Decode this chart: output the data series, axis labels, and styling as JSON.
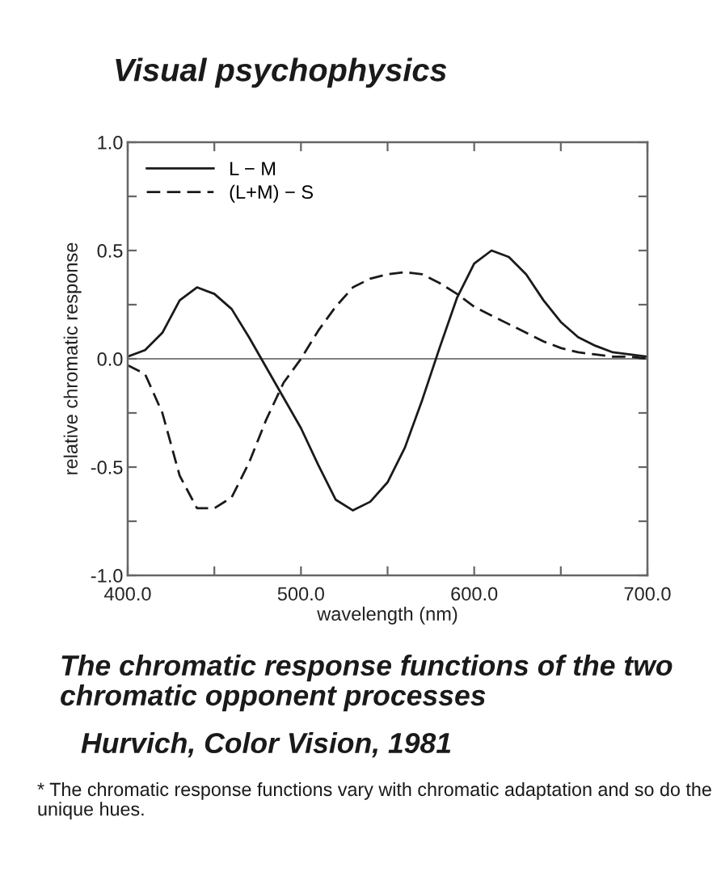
{
  "chart_data": {
    "type": "line",
    "title": "Visual psychophysics",
    "xlabel": "wavelength (nm)",
    "ylabel": "relative chromatic response",
    "annotations": [
      "The chromatic response functions of the two chromatic opponent processes",
      "Hurvich, Color Vision, 1981",
      "* The chromatic response functions vary with chromatic adaptation and so do the unique hues."
    ],
    "x": [
      400,
      410,
      420,
      430,
      440,
      450,
      460,
      470,
      480,
      490,
      500,
      510,
      520,
      530,
      540,
      550,
      560,
      570,
      580,
      590,
      600,
      610,
      620,
      630,
      640,
      650,
      660,
      670,
      680,
      690,
      700
    ],
    "series": [
      {
        "name": "L − M",
        "color": "#1a1a1a",
        "line_style": "solid",
        "values": [
          0.01,
          0.04,
          0.12,
          0.27,
          0.33,
          0.3,
          0.23,
          0.1,
          -0.04,
          -0.18,
          -0.32,
          -0.49,
          -0.65,
          -0.7,
          -0.66,
          -0.57,
          -0.41,
          -0.19,
          0.05,
          0.28,
          0.44,
          0.5,
          0.47,
          0.39,
          0.27,
          0.17,
          0.1,
          0.06,
          0.03,
          0.02,
          0.01
        ]
      },
      {
        "name": "(L+M) − S",
        "color": "#1a1a1a",
        "line_style": "dashed",
        "values": [
          -0.03,
          -0.07,
          -0.25,
          -0.54,
          -0.69,
          -0.69,
          -0.64,
          -0.48,
          -0.28,
          -0.11,
          0.0,
          0.13,
          0.24,
          0.33,
          0.37,
          0.39,
          0.4,
          0.39,
          0.35,
          0.3,
          0.24,
          0.2,
          0.16,
          0.12,
          0.08,
          0.05,
          0.03,
          0.02,
          0.01,
          0.01,
          0.0
        ]
      }
    ],
    "xlim": [
      400,
      700
    ],
    "ylim": [
      -1,
      1
    ],
    "xticks": [
      {
        "value": 400,
        "label": "400.0"
      },
      {
        "value": 450,
        "label": null
      },
      {
        "value": 500,
        "label": "500.0"
      },
      {
        "value": 550,
        "label": null
      },
      {
        "value": 600,
        "label": "600.0"
      },
      {
        "value": 650,
        "label": null
      },
      {
        "value": 700,
        "label": "700.0"
      }
    ],
    "yticks": [
      {
        "value": -1,
        "label": "-1.0"
      },
      {
        "value": -0.75,
        "label": null
      },
      {
        "value": -0.5,
        "label": "-0.5"
      },
      {
        "value": -0.25,
        "label": null
      },
      {
        "value": 0,
        "label": "0.0"
      },
      {
        "value": 0.25,
        "label": null
      },
      {
        "value": 0.5,
        "label": "0.5"
      },
      {
        "value": 0.75,
        "label": null
      },
      {
        "value": 1,
        "label": "1.0"
      }
    ],
    "ref_lines": [
      {
        "axis": "y",
        "value": 0,
        "color": "#808080",
        "line_style": "solid"
      }
    ],
    "legend": "top left"
  }
}
